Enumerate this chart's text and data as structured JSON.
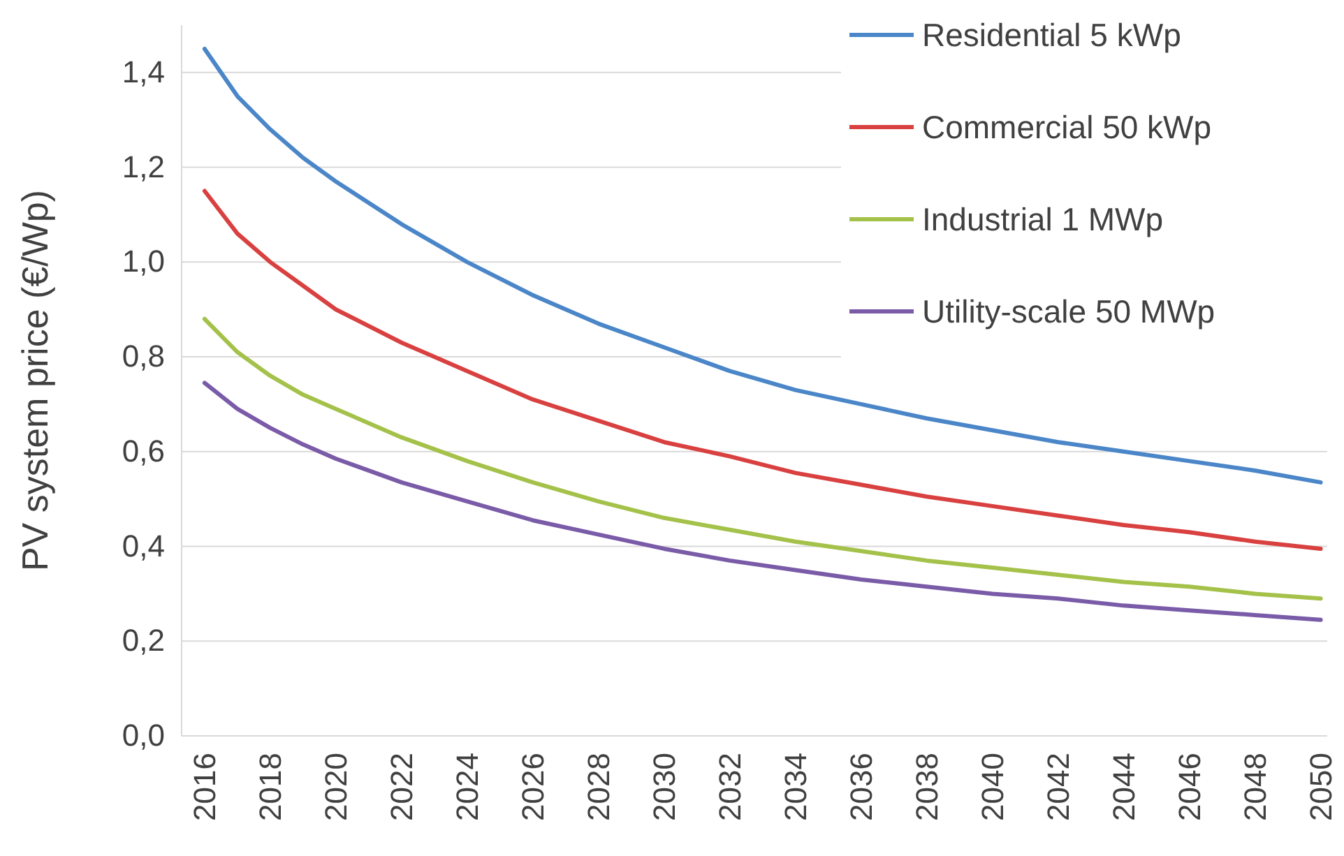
{
  "chart_data": {
    "type": "line",
    "ylabel": "PV system price (€/Wp)",
    "x": [
      2016,
      2017,
      2018,
      2019,
      2020,
      2022,
      2024,
      2026,
      2028,
      2030,
      2032,
      2034,
      2036,
      2038,
      2040,
      2042,
      2044,
      2046,
      2048,
      2050
    ],
    "series": [
      {
        "name": "Residential 5 kWp",
        "color": "#4a86c8",
        "values": [
          1.45,
          1.35,
          1.28,
          1.22,
          1.17,
          1.08,
          1.0,
          0.93,
          0.87,
          0.82,
          0.77,
          0.73,
          0.7,
          0.67,
          0.645,
          0.62,
          0.6,
          0.58,
          0.56,
          0.535
        ]
      },
      {
        "name": "Commercial 50 kWp",
        "color": "#d94040",
        "values": [
          1.15,
          1.06,
          1.0,
          0.95,
          0.9,
          0.83,
          0.77,
          0.71,
          0.665,
          0.62,
          0.59,
          0.555,
          0.53,
          0.505,
          0.485,
          0.465,
          0.445,
          0.43,
          0.41,
          0.395
        ]
      },
      {
        "name": "Industrial 1 MWp",
        "color": "#a4c14a",
        "values": [
          0.88,
          0.81,
          0.76,
          0.72,
          0.69,
          0.63,
          0.58,
          0.535,
          0.495,
          0.46,
          0.435,
          0.41,
          0.39,
          0.37,
          0.355,
          0.34,
          0.325,
          0.315,
          0.3,
          0.29
        ]
      },
      {
        "name": "Utility-scale 50 MWp",
        "color": "#7a5ba8",
        "values": [
          0.745,
          0.69,
          0.65,
          0.615,
          0.585,
          0.535,
          0.495,
          0.455,
          0.425,
          0.395,
          0.37,
          0.35,
          0.33,
          0.315,
          0.3,
          0.29,
          0.275,
          0.265,
          0.255,
          0.245
        ]
      }
    ],
    "xlim": [
      2015.3,
      2050.2
    ],
    "xticks": [
      2016,
      2018,
      2020,
      2022,
      2024,
      2026,
      2028,
      2030,
      2032,
      2034,
      2036,
      2038,
      2040,
      2042,
      2044,
      2046,
      2048,
      2050
    ],
    "ylim": [
      0,
      1.5
    ],
    "yticks": [
      {
        "value": 0,
        "label": "0,0"
      },
      {
        "value": 0.2,
        "label": "0,2"
      },
      {
        "value": 0.4,
        "label": "0,4"
      },
      {
        "value": 0.6,
        "label": "0,6"
      },
      {
        "value": 0.8,
        "label": "0,8"
      },
      {
        "value": 1.0,
        "label": "1,0"
      },
      {
        "value": 1.2,
        "label": "1,2"
      },
      {
        "value": 1.4,
        "label": "1,4"
      }
    ],
    "grid": "y",
    "legend": "top right",
    "marker": "none",
    "line_style": "solid"
  }
}
